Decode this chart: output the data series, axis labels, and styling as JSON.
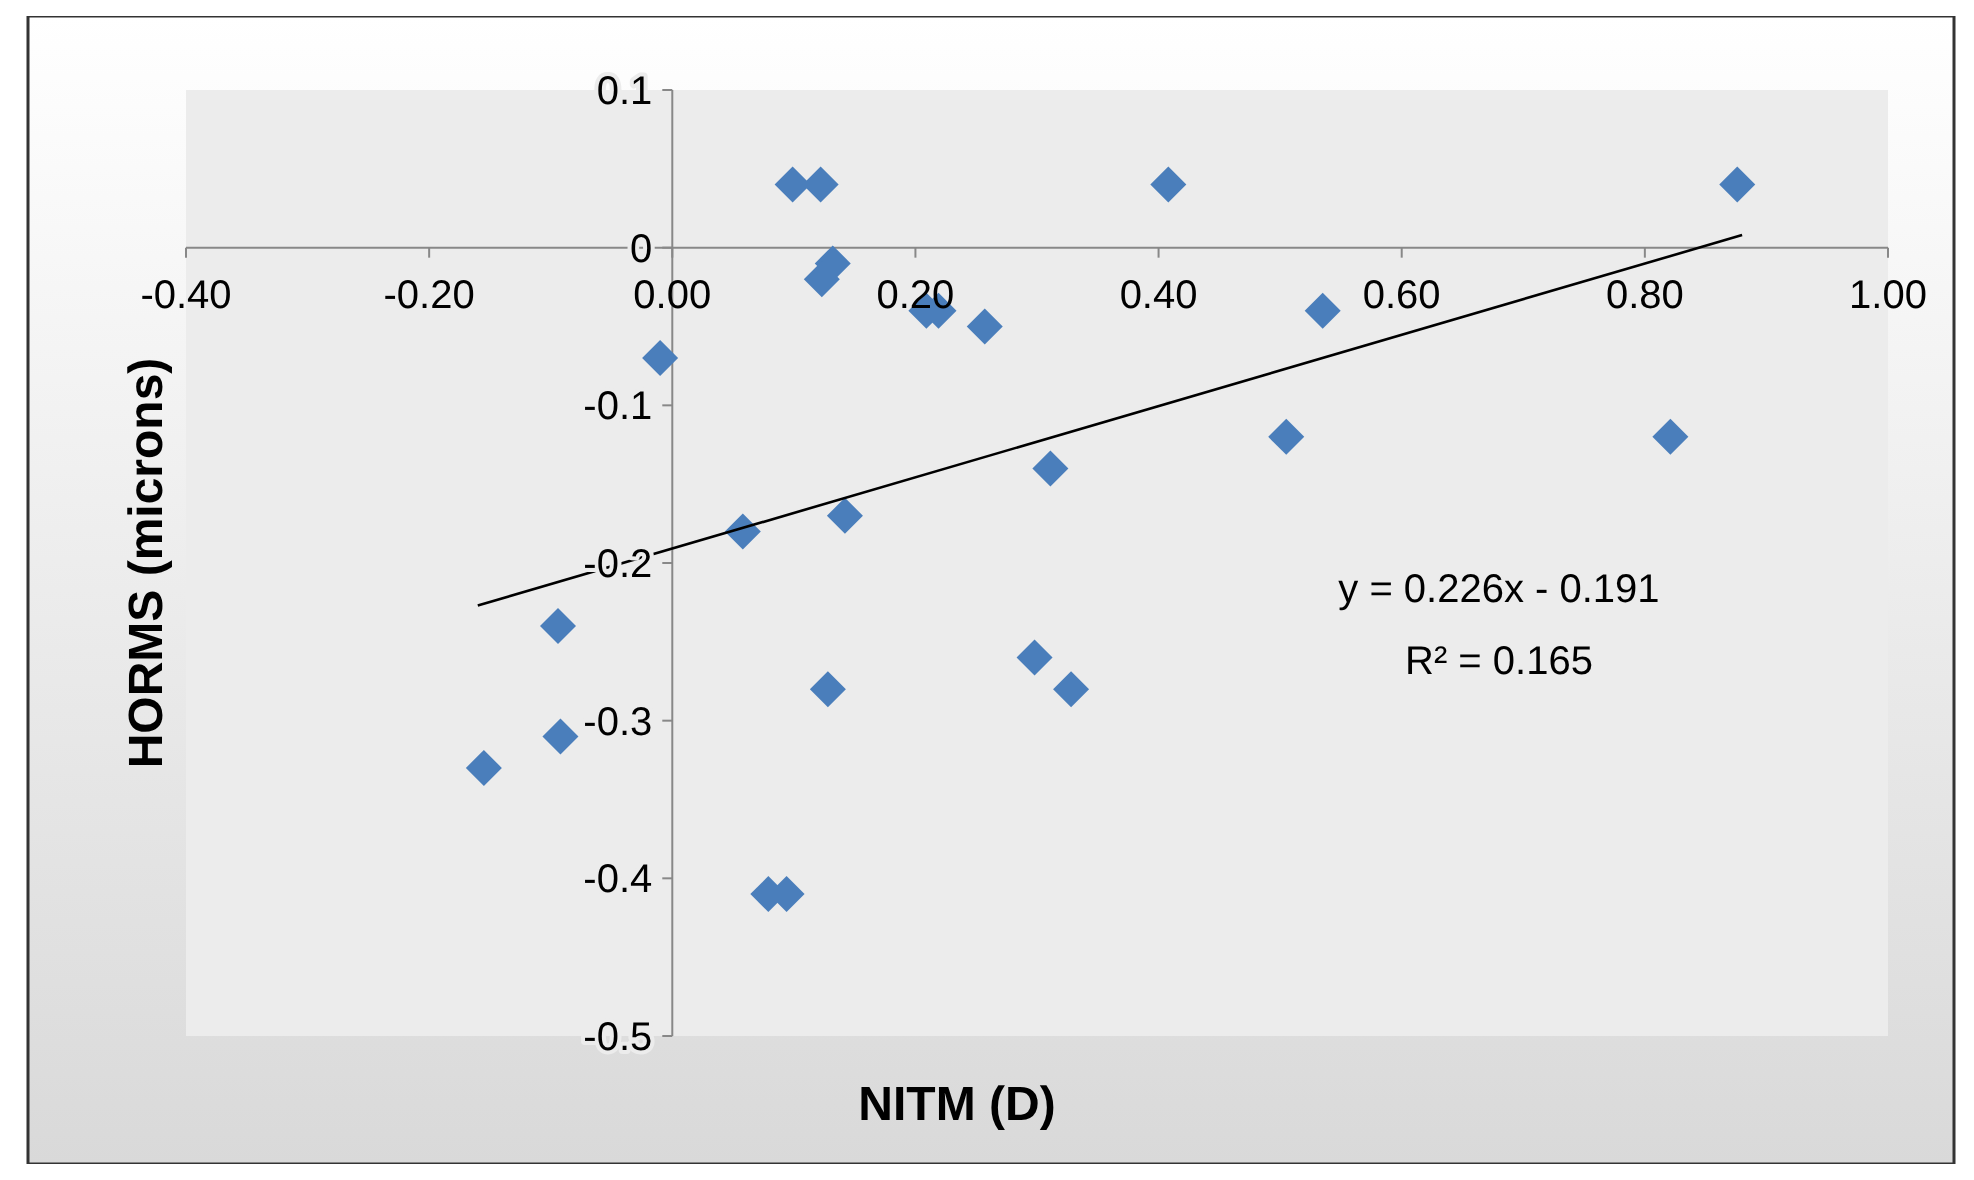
{
  "chart_data": {
    "type": "scatter",
    "xlabel": "NITM (D)",
    "ylabel": "HORMS (microns)",
    "xlim": [
      -0.4,
      1.0
    ],
    "ylim": [
      -0.5,
      0.1
    ],
    "xticks": [
      {
        "value": -0.4,
        "label": "-0.40"
      },
      {
        "value": -0.2,
        "label": "-0.20"
      },
      {
        "value": 0,
        "label": "0.00"
      },
      {
        "value": 0.2,
        "label": "0.20"
      },
      {
        "value": 0.4,
        "label": "0.40"
      },
      {
        "value": 0.6,
        "label": "0.60"
      },
      {
        "value": 0.8,
        "label": "0.80"
      },
      {
        "value": 1.0,
        "label": "1.00"
      }
    ],
    "yticks": [
      0.1,
      0,
      -0.1,
      -0.2,
      -0.3,
      -0.4,
      -0.5
    ],
    "grid": false,
    "series": [
      {
        "type": "scatter",
        "marker": "diamond",
        "color": "#4a7ebb",
        "x": [
          0.099,
          0.122,
          0.132,
          0.123,
          0.209,
          0.219,
          0.257,
          0.408,
          0.535,
          0.876,
          -0.01,
          0.505,
          0.821,
          0.311,
          0.058,
          0.142,
          -0.094,
          -0.155,
          -0.092,
          0.298,
          0.328,
          0.128,
          0.079,
          0.094
        ],
        "values": [
          0.04,
          0.04,
          -0.01,
          -0.02,
          -0.04,
          -0.04,
          -0.05,
          0.04,
          -0.04,
          0.04,
          -0.07,
          -0.12,
          -0.12,
          -0.14,
          -0.18,
          -0.17,
          -0.24,
          -0.33,
          -0.31,
          -0.26,
          -0.28,
          -0.28,
          -0.41,
          -0.41
        ]
      },
      {
        "type": "line",
        "marker": "none",
        "color": "#000000",
        "x": [
          -0.16,
          0.88
        ],
        "values": [
          -0.227,
          0.008
        ]
      }
    ],
    "annotations": [
      "y = 0.226x - 0.191",
      "R² = 0.165"
    ]
  }
}
